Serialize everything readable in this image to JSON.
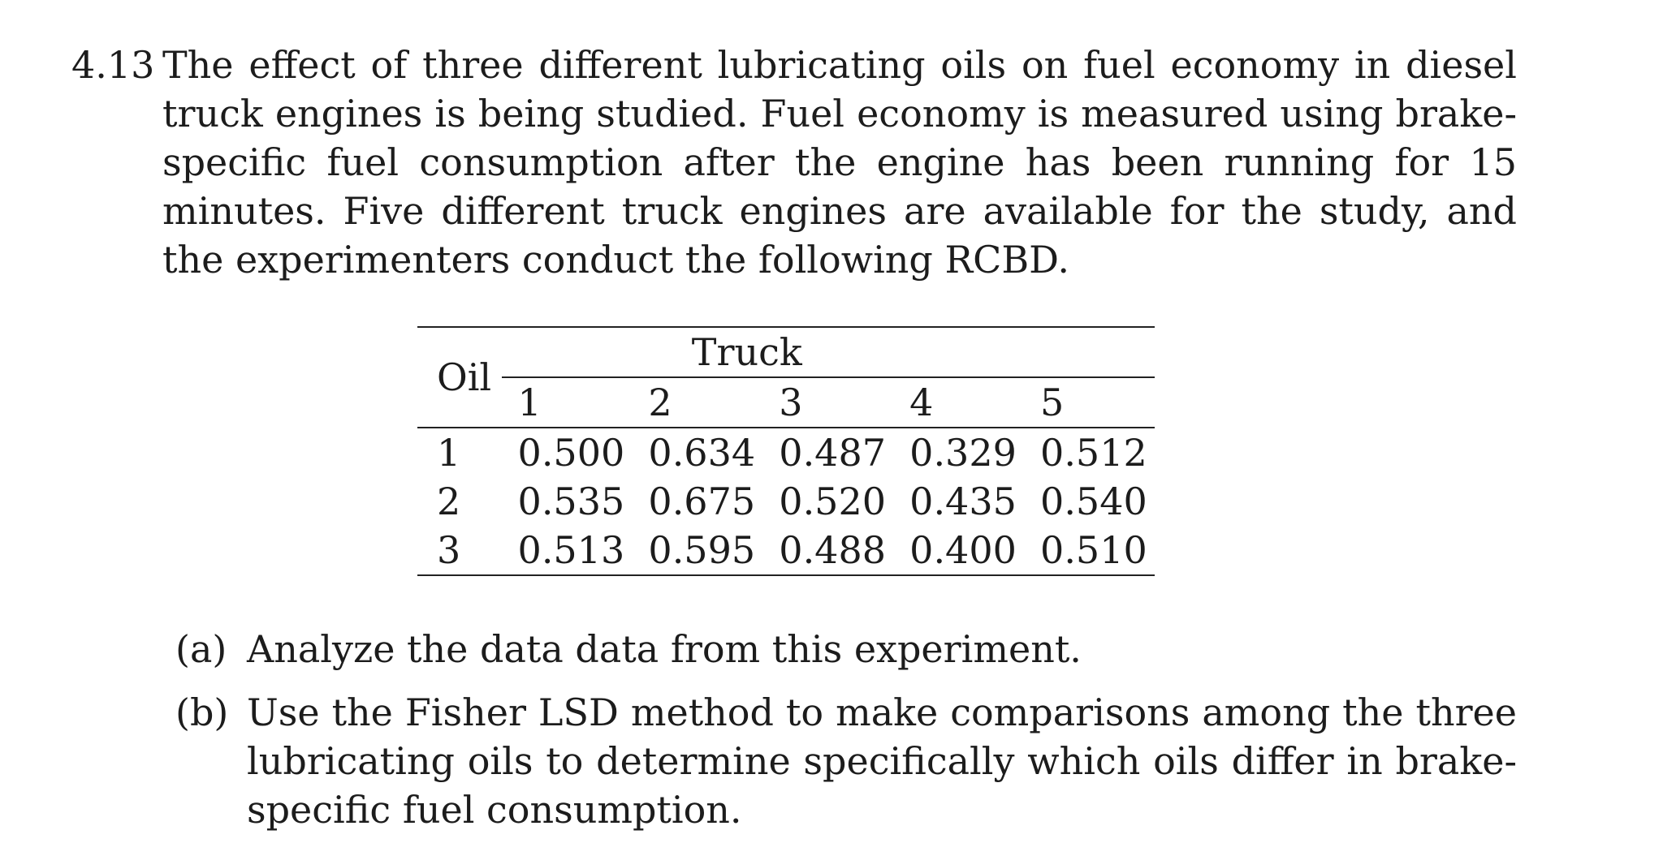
{
  "problem": {
    "number": "4.13",
    "text": "The effect of three different lubricating oils on fuel economy in diesel truck engines is being studied. Fuel economy is measured using brake-specific fuel consumption after the engine has been running for 15 minutes. Five different truck engines are available for the study, and the experimenters conduct the following RCBD."
  },
  "table": {
    "row_header": "Oil",
    "group_header": "Truck",
    "columns": [
      "1",
      "2",
      "3",
      "4",
      "5"
    ],
    "rows": [
      {
        "label": "1",
        "values": [
          "0.500",
          "0.634",
          "0.487",
          "0.329",
          "0.512"
        ]
      },
      {
        "label": "2",
        "values": [
          "0.535",
          "0.675",
          "0.520",
          "0.435",
          "0.540"
        ]
      },
      {
        "label": "3",
        "values": [
          "0.513",
          "0.595",
          "0.488",
          "0.400",
          "0.510"
        ]
      }
    ]
  },
  "parts": [
    {
      "label": "(a)",
      "text": "Analyze the data data from this experiment."
    },
    {
      "label": "(b)",
      "text": "Use the Fisher LSD method to make comparisons among the three lubricating oils to determine specifically which oils differ in brake-specific fuel consumption."
    }
  ]
}
